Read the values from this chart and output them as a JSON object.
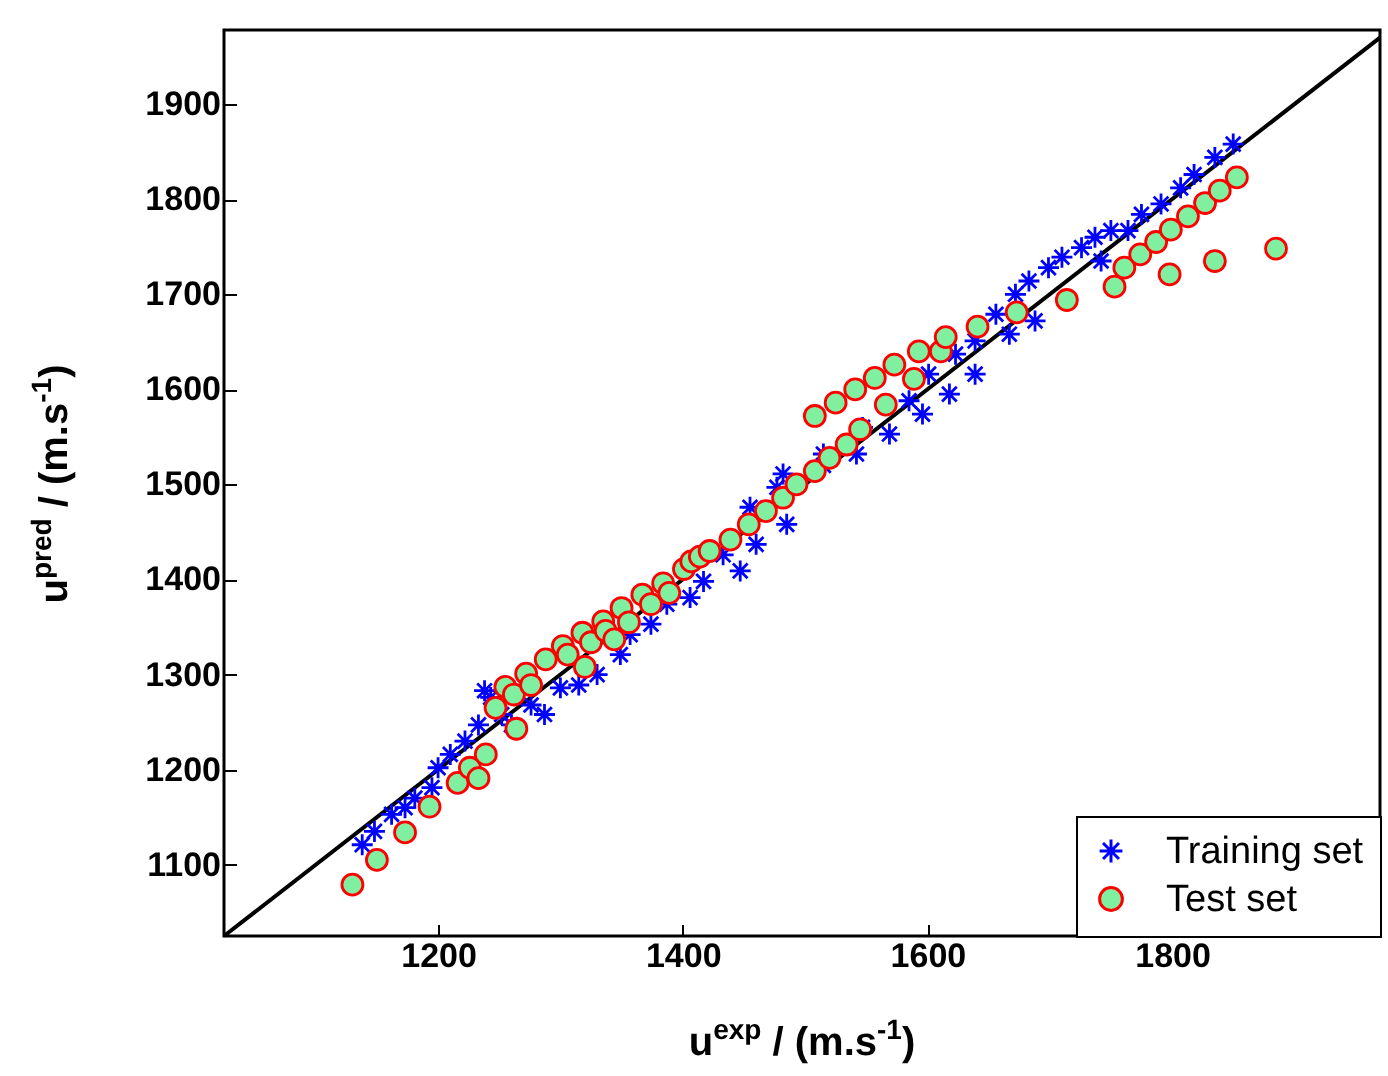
{
  "chart_data": {
    "type": "scatter",
    "xlabel": "u$^{exp}$ / (m.s$^{-1}$)",
    "ylabel": "u$^{pred}$ / (m.s$^{-1}$)",
    "xlim": [
      1025,
      1970
    ],
    "ylim": [
      1025,
      1978
    ],
    "xticks": [
      1200,
      1400,
      1600,
      1800
    ],
    "yticks": [
      1100,
      1200,
      1300,
      1400,
      1500,
      1600,
      1700,
      1800,
      1900
    ],
    "legend": "bottom right",
    "series": [
      {
        "type": "line",
        "color": "#000000",
        "marker": "none",
        "x": [
          1025,
          1970
        ],
        "values": [
          1025,
          1970
        ]
      },
      {
        "name": "Training set",
        "color": "#0000ff",
        "marker": "cross",
        "x": [
          1138,
          1148,
          1162,
          1173,
          1181,
          1195,
          1200,
          1210,
          1222,
          1233,
          1238,
          1243,
          1252,
          1260,
          1276,
          1287,
          1300,
          1315,
          1330,
          1349,
          1357,
          1374,
          1387,
          1406,
          1417,
          1433,
          1447,
          1460,
          1455,
          1477,
          1485,
          1482,
          1515,
          1547,
          1585,
          1601,
          1623,
          1639,
          1656,
          1672,
          1683,
          1699,
          1710,
          1726,
          1737,
          1750,
          1764,
          1742,
          1775,
          1791,
          1807,
          1818,
          1835,
          1850,
          1688,
          1667,
          1639,
          1618,
          1596,
          1569,
          1542,
          1515
        ],
        "values": [
          1121,
          1135,
          1153,
          1160,
          1170,
          1181,
          1202,
          1216,
          1230,
          1247,
          1283,
          1276,
          1258,
          1247,
          1268,
          1258,
          1286,
          1289,
          1300,
          1321,
          1342,
          1353,
          1374,
          1381,
          1398,
          1426,
          1409,
          1437,
          1476,
          1497,
          1458,
          1511,
          1532,
          1560,
          1588,
          1616,
          1637,
          1651,
          1679,
          1700,
          1714,
          1728,
          1739,
          1749,
          1760,
          1767,
          1767,
          1735,
          1784,
          1795,
          1812,
          1826,
          1844,
          1858,
          1672,
          1658,
          1616,
          1595,
          1574,
          1553,
          1532,
          1520
        ]
      },
      {
        "name": "Test set",
        "color": "#80f0a0",
        "marker": "circle",
        "x": [
          1130,
          1150,
          1173,
          1193,
          1216,
          1226,
          1233,
          1239,
          1247,
          1264,
          1255,
          1262,
          1272,
          1276,
          1288,
          1302,
          1306,
          1318,
          1320,
          1325,
          1335,
          1337,
          1344,
          1350,
          1356,
          1367,
          1374,
          1384,
          1389,
          1401,
          1407,
          1414,
          1422,
          1439,
          1454,
          1468,
          1482,
          1493,
          1508,
          1520,
          1534,
          1545,
          1566,
          1589,
          1508,
          1525,
          1541,
          1557,
          1573,
          1593,
          1611,
          1615,
          1641,
          1673,
          1714,
          1753,
          1761,
          1774,
          1787,
          1798,
          1799,
          1813,
          1827,
          1839,
          1835,
          1853,
          1885
        ],
        "values": [
          1079,
          1105,
          1134,
          1161,
          1186,
          1202,
          1191,
          1216,
          1265,
          1243,
          1287,
          1279,
          1301,
          1289,
          1316,
          1330,
          1321,
          1344,
          1308,
          1334,
          1356,
          1346,
          1337,
          1370,
          1355,
          1384,
          1374,
          1396,
          1386,
          1411,
          1419,
          1424,
          1430,
          1442,
          1458,
          1472,
          1486,
          1500,
          1514,
          1528,
          1542,
          1558,
          1584,
          1611,
          1572,
          1586,
          1600,
          1612,
          1626,
          1640,
          1640,
          1655,
          1666,
          1681,
          1694,
          1708,
          1728,
          1742,
          1755,
          1721,
          1768,
          1782,
          1796,
          1809,
          1735,
          1823,
          1748
        ]
      }
    ]
  }
}
